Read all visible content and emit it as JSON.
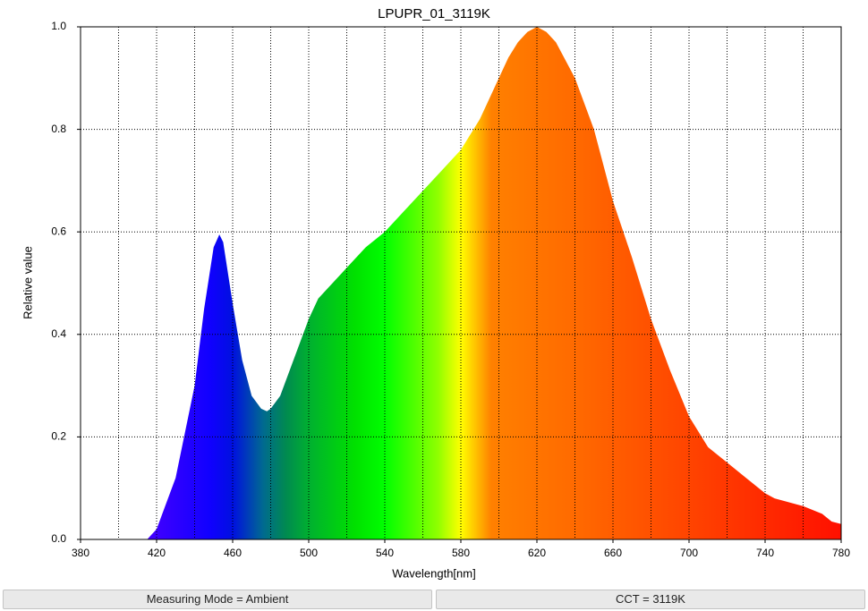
{
  "chart_data": {
    "type": "area",
    "title": "LPUPR_01_3119K",
    "x_label": "Wavelength[nm]",
    "y_label": "Relative value",
    "x": [
      415,
      420,
      430,
      440,
      445,
      450,
      453,
      455,
      460,
      465,
      470,
      475,
      478,
      480,
      485,
      490,
      495,
      500,
      505,
      510,
      520,
      530,
      540,
      550,
      560,
      570,
      580,
      590,
      600,
      605,
      610,
      615,
      620,
      625,
      630,
      640,
      650,
      660,
      670,
      680,
      690,
      700,
      710,
      720,
      730,
      740,
      745,
      750,
      760,
      770,
      775,
      780
    ],
    "values": [
      0,
      0.02,
      0.12,
      0.3,
      0.45,
      0.57,
      0.595,
      0.58,
      0.46,
      0.35,
      0.28,
      0.255,
      0.25,
      0.255,
      0.28,
      0.33,
      0.38,
      0.43,
      0.47,
      0.49,
      0.53,
      0.57,
      0.6,
      0.64,
      0.68,
      0.72,
      0.76,
      0.82,
      0.9,
      0.94,
      0.97,
      0.99,
      1.0,
      0.99,
      0.97,
      0.9,
      0.8,
      0.66,
      0.55,
      0.43,
      0.33,
      0.24,
      0.18,
      0.15,
      0.12,
      0.09,
      0.08,
      0.075,
      0.065,
      0.05,
      0.035,
      0.03
    ],
    "xlim": [
      380,
      780
    ],
    "xticks": [
      380,
      420,
      460,
      500,
      540,
      580,
      620,
      660,
      700,
      740,
      780
    ],
    "xgrid_minor": [
      400,
      440,
      480,
      520,
      560,
      600,
      640,
      680,
      720,
      760
    ],
    "ylim": [
      0,
      1
    ],
    "yticks": [
      {
        "value": 0,
        "label": "0.0"
      },
      0.2,
      0.4,
      0.6,
      0.8,
      {
        "value": 1,
        "label": "1.0"
      }
    ],
    "grid": true
  },
  "status": [
    "Measuring Mode = Ambient",
    "CCT = 3119K"
  ]
}
